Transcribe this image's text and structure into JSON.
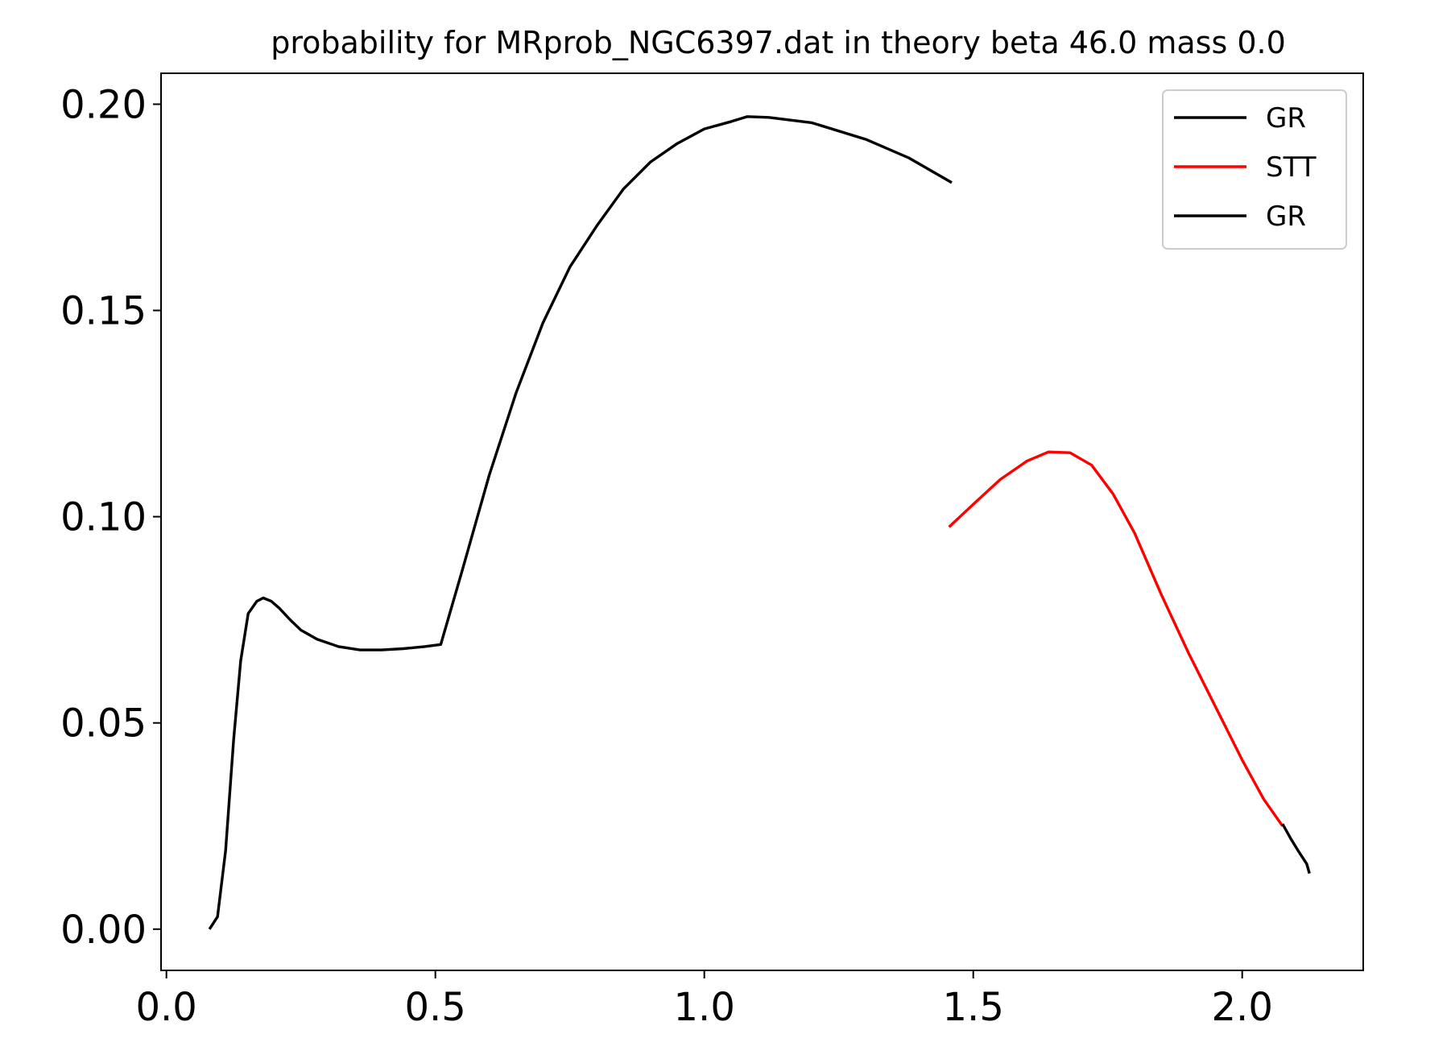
{
  "chart_data": {
    "type": "line",
    "title": "probability for MRprob_NGC6397.dat in theory beta 46.0 mass 0.0",
    "xlabel": "",
    "ylabel": "",
    "xlim": [
      -0.01,
      2.225
    ],
    "ylim": [
      -0.01,
      0.2075
    ],
    "xticks": [
      {
        "value": 0.0,
        "label": "0.0"
      },
      {
        "value": 0.5,
        "label": "0.5"
      },
      {
        "value": 1.0,
        "label": "1.0"
      },
      {
        "value": 1.5,
        "label": "1.5"
      },
      {
        "value": 2.0,
        "label": "2.0"
      }
    ],
    "yticks": [
      {
        "value": 0.0,
        "label": "0.00"
      },
      {
        "value": 0.05,
        "label": "0.05"
      },
      {
        "value": 0.1,
        "label": "0.10"
      },
      {
        "value": 0.15,
        "label": "0.15"
      },
      {
        "value": 0.2,
        "label": "0.20"
      }
    ],
    "grid": false,
    "legend": {
      "placement": "upper-right"
    },
    "series": [
      {
        "name": "GR",
        "color": "#000000",
        "points": [
          [
            0.08,
            0.0
          ],
          [
            0.095,
            0.003
          ],
          [
            0.11,
            0.019
          ],
          [
            0.125,
            0.046
          ],
          [
            0.138,
            0.065
          ],
          [
            0.152,
            0.0765
          ],
          [
            0.168,
            0.0795
          ],
          [
            0.18,
            0.0803
          ],
          [
            0.195,
            0.0795
          ],
          [
            0.21,
            0.0778
          ],
          [
            0.23,
            0.075
          ],
          [
            0.25,
            0.0725
          ],
          [
            0.28,
            0.0703
          ],
          [
            0.32,
            0.0685
          ],
          [
            0.36,
            0.0677
          ],
          [
            0.4,
            0.0677
          ],
          [
            0.44,
            0.068
          ],
          [
            0.48,
            0.0685
          ],
          [
            0.51,
            0.069
          ],
          [
            0.55,
            0.087
          ],
          [
            0.6,
            0.11
          ],
          [
            0.65,
            0.13
          ],
          [
            0.7,
            0.147
          ],
          [
            0.75,
            0.1605
          ],
          [
            0.8,
            0.1705
          ],
          [
            0.85,
            0.1795
          ],
          [
            0.9,
            0.186
          ],
          [
            0.95,
            0.1905
          ],
          [
            1.0,
            0.194
          ],
          [
            1.05,
            0.1958
          ],
          [
            1.08,
            0.197
          ],
          [
            1.12,
            0.1968
          ],
          [
            1.2,
            0.1955
          ],
          [
            1.3,
            0.1915
          ],
          [
            1.38,
            0.187
          ],
          [
            1.42,
            0.184
          ],
          [
            1.46,
            0.181
          ]
        ]
      },
      {
        "name": "STT",
        "color": "#ff0000",
        "points": [
          [
            1.455,
            0.0975
          ],
          [
            1.5,
            0.103
          ],
          [
            1.55,
            0.109
          ],
          [
            1.6,
            0.1135
          ],
          [
            1.64,
            0.1157
          ],
          [
            1.68,
            0.1155
          ],
          [
            1.72,
            0.1125
          ],
          [
            1.76,
            0.1055
          ],
          [
            1.8,
            0.096
          ],
          [
            1.85,
            0.081
          ],
          [
            1.9,
            0.067
          ],
          [
            1.95,
            0.054
          ],
          [
            2.0,
            0.041
          ],
          [
            2.04,
            0.0315
          ],
          [
            2.075,
            0.025
          ]
        ]
      },
      {
        "name": "GR",
        "color": "#000000",
        "points": [
          [
            2.075,
            0.0255
          ],
          [
            2.09,
            0.022
          ],
          [
            2.105,
            0.0188
          ],
          [
            2.12,
            0.0158
          ],
          [
            2.125,
            0.0135
          ]
        ]
      }
    ]
  }
}
